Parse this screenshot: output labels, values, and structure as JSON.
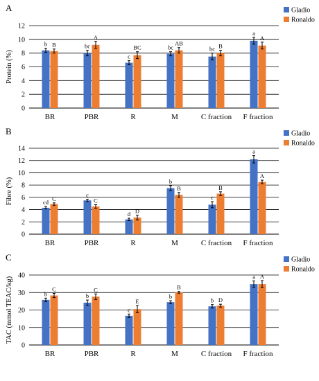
{
  "colors": {
    "gladio": "#4472C4",
    "ronaldo": "#ED7D31",
    "grid": "#000000",
    "error": "#000000"
  },
  "chart_data": [
    {
      "type": "bar",
      "panel_label": "A",
      "ylabel": "Protein (%)",
      "ylim": [
        0,
        12
      ],
      "yticks": [
        0,
        2,
        4,
        6,
        8,
        10,
        12
      ],
      "yticks_labels": [
        "0",
        "2",
        "4",
        "6",
        "8",
        "10",
        "12"
      ],
      "grid": true,
      "legend": "top-right",
      "categories": [
        "BR",
        "PBR",
        "R",
        "M",
        "C fraction",
        "F fraction"
      ],
      "series": [
        {
          "name": "Gladio",
          "values": [
            8.4,
            8.0,
            6.6,
            7.9,
            7.5,
            9.8
          ],
          "errors": [
            0.3,
            0.4,
            0.3,
            0.3,
            0.5,
            0.5
          ],
          "letters": [
            "b",
            "bc",
            "c",
            "bc",
            "bc",
            "a"
          ]
        },
        {
          "name": "Ronaldo",
          "values": [
            8.3,
            9.2,
            7.7,
            8.4,
            8.0,
            9.1
          ],
          "errors": [
            0.3,
            0.5,
            0.5,
            0.4,
            0.4,
            0.5
          ],
          "letters": [
            "B",
            "A",
            "BC",
            "AB",
            "B",
            "A"
          ]
        }
      ]
    },
    {
      "type": "bar",
      "panel_label": "B",
      "ylabel": "Fibre (%)",
      "ylim": [
        0,
        14
      ],
      "yticks": [
        0,
        2,
        4,
        6,
        8,
        10,
        12,
        14
      ],
      "yticks_labels": [
        "0",
        "2",
        "4",
        "6",
        "8",
        "10",
        "12",
        "14"
      ],
      "grid": true,
      "legend": "top-right",
      "categories": [
        "BR",
        "PBR",
        "R",
        "M",
        "C fraction",
        "F fraction"
      ],
      "series": [
        {
          "name": "Gladio",
          "values": [
            4.3,
            5.5,
            2.4,
            7.5,
            4.8,
            12.2
          ],
          "errors": [
            0.2,
            0.2,
            0.2,
            0.4,
            0.5,
            0.6
          ],
          "letters": [
            "cd",
            "c",
            "d",
            "b",
            "c",
            "a"
          ]
        },
        {
          "name": "Ronaldo",
          "values": [
            4.9,
            4.5,
            2.7,
            6.4,
            6.6,
            8.5
          ],
          "errors": [
            0.2,
            0.3,
            0.4,
            0.4,
            0.3,
            0.3
          ],
          "letters": [
            "C",
            "C",
            "D",
            "B",
            "B",
            "A"
          ]
        }
      ]
    },
    {
      "type": "bar",
      "panel_label": "C",
      "ylabel": "TAC (mmol TEAC/kg)",
      "ylim": [
        0,
        40
      ],
      "yticks": [
        0,
        10,
        20,
        30,
        40
      ],
      "yticks_labels": [
        "0",
        "10",
        "20",
        "30",
        "40"
      ],
      "grid": true,
      "legend": "top-right",
      "categories": [
        "BR",
        "PBR",
        "R",
        "M",
        "C fraction",
        "F fraction"
      ],
      "series": [
        {
          "name": "Gladio",
          "values": [
            25.8,
            24.2,
            16.7,
            24.5,
            22.1,
            34.8
          ],
          "errors": [
            1.0,
            1.5,
            1.0,
            0.8,
            1.0,
            1.8
          ],
          "letters": [
            "b",
            "b",
            "c",
            "b",
            "b",
            "a"
          ]
        },
        {
          "name": "Ronaldo",
          "values": [
            28.3,
            27.6,
            20.5,
            30.1,
            22.5,
            34.8
          ],
          "errors": [
            1.2,
            1.6,
            2.0,
            0.5,
            0.8,
            2.0
          ],
          "letters": [
            "C",
            "C",
            "E",
            "B",
            "D",
            "A"
          ]
        }
      ]
    }
  ]
}
